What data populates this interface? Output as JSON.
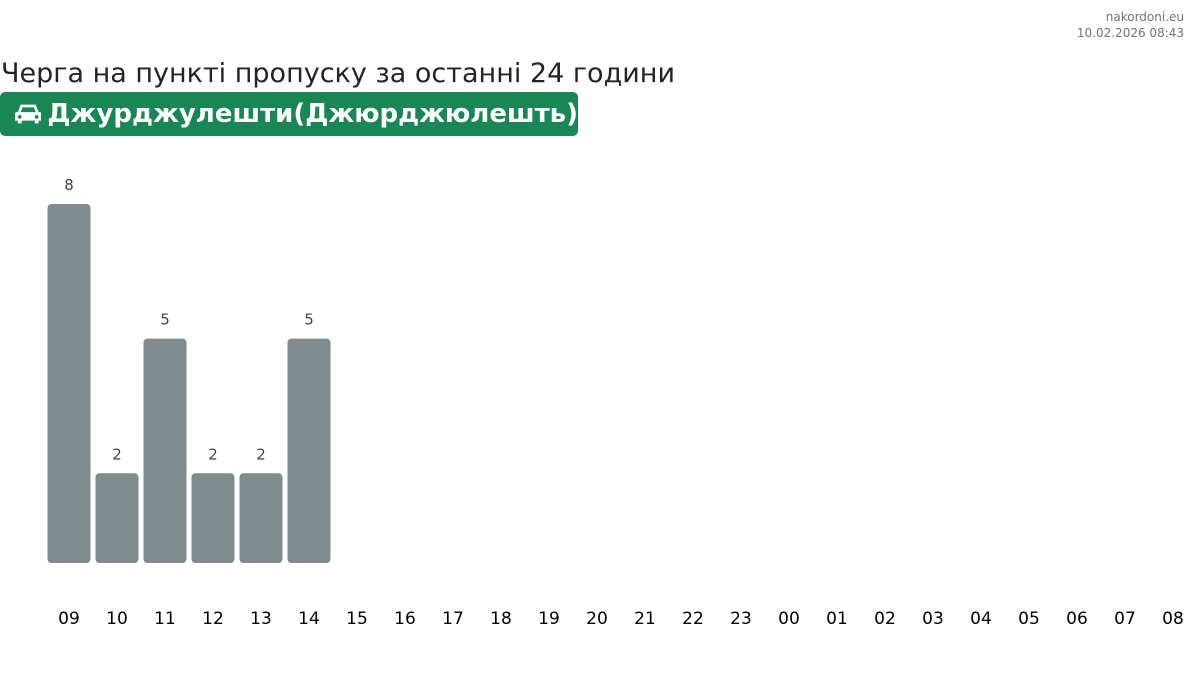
{
  "header": {
    "site": "nakordoni.eu",
    "datetime": "10.02.2026 08:43"
  },
  "title": "Черга на пункті пропуску за останні 24 години",
  "checkpoint": {
    "icon": "car-icon",
    "name": "Джурджулешти(Джюрджюлешть)",
    "color": "#198754"
  },
  "chart_data": {
    "type": "bar",
    "categories": [
      "09",
      "10",
      "11",
      "12",
      "13",
      "14",
      "15",
      "16",
      "17",
      "18",
      "19",
      "20",
      "21",
      "22",
      "23",
      "00",
      "01",
      "02",
      "03",
      "04",
      "05",
      "06",
      "07",
      "08"
    ],
    "values": [
      8,
      2,
      5,
      2,
      2,
      5,
      null,
      null,
      null,
      null,
      null,
      null,
      null,
      null,
      null,
      null,
      null,
      null,
      null,
      null,
      null,
      null,
      null,
      null
    ],
    "bar_color": "#7f8c8d",
    "ylim": [
      0,
      8
    ]
  }
}
